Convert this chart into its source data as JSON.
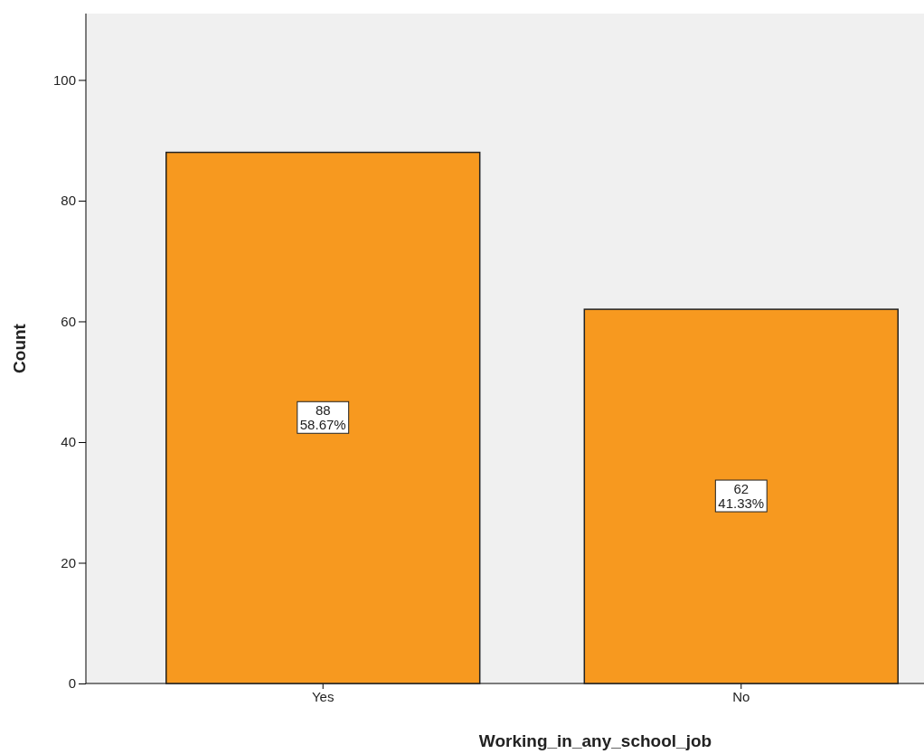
{
  "chart_data": {
    "type": "bar",
    "xlabel": "Working_in_any_school_job",
    "ylabel": "Count",
    "categories": [
      "Yes",
      "No"
    ],
    "values": [
      88,
      62
    ],
    "value_labels": [
      "88\n58.67%",
      "62\n41.33%"
    ],
    "color": "#f7991f",
    "ylim": [
      0,
      111
    ],
    "yticks": [
      0,
      20,
      40,
      60,
      80,
      100
    ],
    "grid": false
  }
}
